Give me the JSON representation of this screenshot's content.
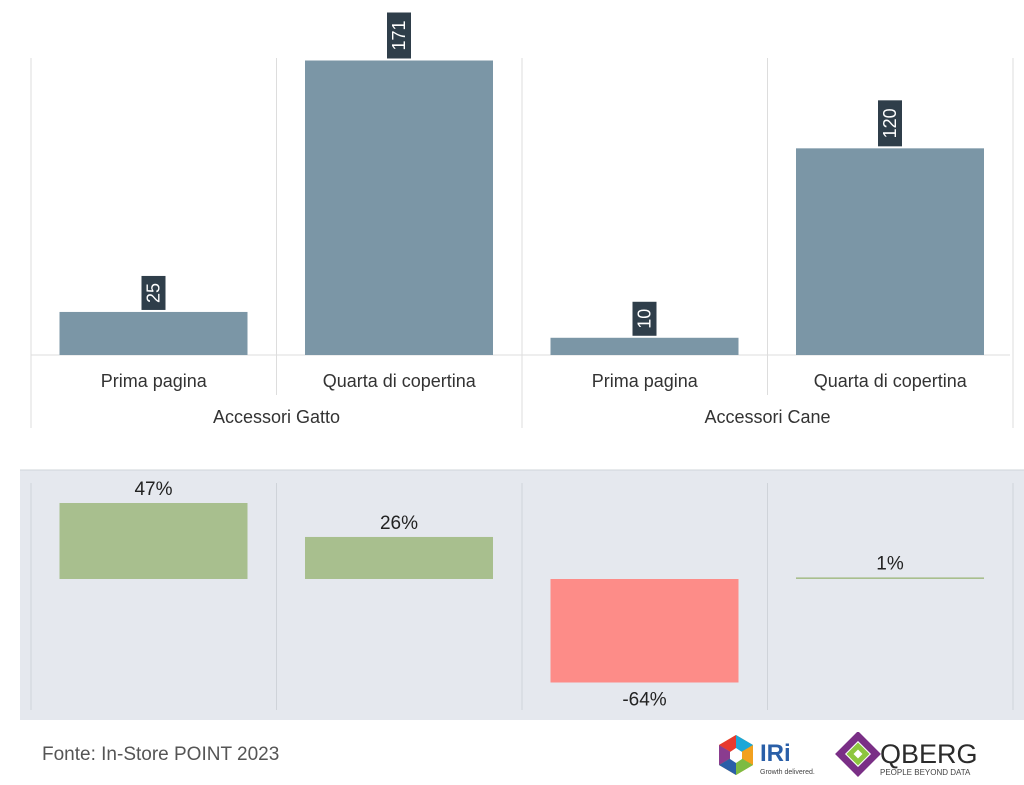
{
  "chart_data": [
    {
      "type": "bar",
      "groups": [
        {
          "label": "Accessori Gatto",
          "categories": [
            "Prima pagina",
            "Quarta di copertina"
          ]
        },
        {
          "label": "Accessori Cane",
          "categories": [
            "Prima pagina",
            "Quarta di copertina"
          ]
        }
      ],
      "values": [
        25,
        171,
        10,
        120
      ],
      "ylim": [
        0,
        180
      ],
      "bar_color": "#7b96a6",
      "label_bg": "#2f3e4a"
    },
    {
      "type": "bar",
      "values": [
        47,
        26,
        -64,
        1
      ],
      "value_labels": [
        "47%",
        "26%",
        "-64%",
        "1%"
      ],
      "ylim": [
        -70,
        50
      ],
      "positive_color": "#a8bf8e",
      "negative_color": "#fd8c88",
      "panel_bg": "#e5e8ee"
    }
  ],
  "footer": {
    "source": "Fonte: In-Store POINT 2023",
    "logo_iri": "IRi",
    "logo_iri_tagline": "Growth delivered.",
    "logo_qberg": "QBERG",
    "logo_qberg_tagline": "PEOPLE BEYOND DATA"
  }
}
